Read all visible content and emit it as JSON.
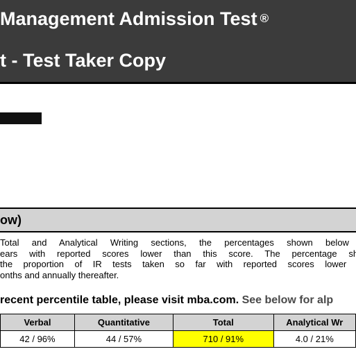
{
  "header": {
    "line1": "Management Admission Test",
    "registered_mark": "®",
    "line2": "t - Test Taker Copy"
  },
  "section": {
    "title": "ow)"
  },
  "paragraph": {
    "lines": [
      "Total and Analytical Writing sections, the percentages shown below rep",
      "ears with reported scores lower than this score. The percentage shown",
      "the proportion of IR tests taken so far with reported scores lower than",
      "onths and annually thereafter."
    ]
  },
  "visit_line": {
    "main": "recent percentile table, please visit mba.com.",
    "tail": " See below for alp"
  },
  "score_table": {
    "headers": [
      "Verbal",
      "Quantitative",
      "Total",
      "Analytical Wr"
    ],
    "values": [
      "42 / 96%",
      "44 / 57%",
      "710 / 91%",
      "4.0 / 21%"
    ],
    "highlight_color": "#ffff00"
  }
}
